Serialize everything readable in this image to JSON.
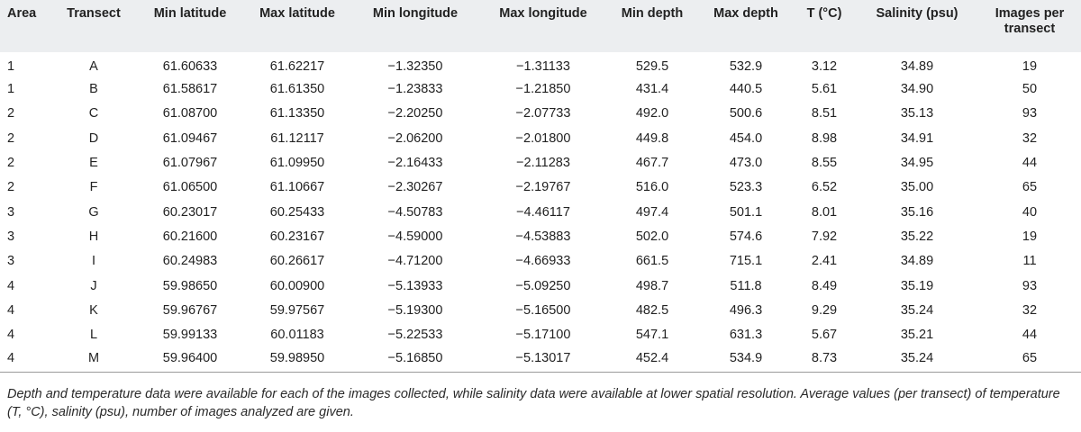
{
  "table": {
    "headers": [
      "Area",
      "Transect",
      "Min latitude",
      "Max latitude",
      "Min longitude",
      "Max longitude",
      "Min depth",
      "Max depth",
      "T (°C)",
      "Salinity (psu)",
      "Images per transect"
    ],
    "rows": [
      [
        "1",
        "A",
        "61.60633",
        "61.62217",
        "−1.32350",
        "−1.31133",
        "529.5",
        "532.9",
        "3.12",
        "34.89",
        "19"
      ],
      [
        "1",
        "B",
        "61.58617",
        "61.61350",
        "−1.23833",
        "−1.21850",
        "431.4",
        "440.5",
        "5.61",
        "34.90",
        "50"
      ],
      [
        "2",
        "C",
        "61.08700",
        "61.13350",
        "−2.20250",
        "−2.07733",
        "492.0",
        "500.6",
        "8.51",
        "35.13",
        "93"
      ],
      [
        "2",
        "D",
        "61.09467",
        "61.12117",
        "−2.06200",
        "−2.01800",
        "449.8",
        "454.0",
        "8.98",
        "34.91",
        "32"
      ],
      [
        "2",
        "E",
        "61.07967",
        "61.09950",
        "−2.16433",
        "−2.11283",
        "467.7",
        "473.0",
        "8.55",
        "34.95",
        "44"
      ],
      [
        "2",
        "F",
        "61.06500",
        "61.10667",
        "−2.30267",
        "−2.19767",
        "516.0",
        "523.3",
        "6.52",
        "35.00",
        "65"
      ],
      [
        "3",
        "G",
        "60.23017",
        "60.25433",
        "−4.50783",
        "−4.46117",
        "497.4",
        "501.1",
        "8.01",
        "35.16",
        "40"
      ],
      [
        "3",
        "H",
        "60.21600",
        "60.23167",
        "−4.59000",
        "−4.53883",
        "502.0",
        "574.6",
        "7.92",
        "35.22",
        "19"
      ],
      [
        "3",
        "I",
        "60.24983",
        "60.26617",
        "−4.71200",
        "−4.66933",
        "661.5",
        "715.1",
        "2.41",
        "34.89",
        "11"
      ],
      [
        "4",
        "J",
        "59.98650",
        "60.00900",
        "−5.13933",
        "−5.09250",
        "498.7",
        "511.8",
        "8.49",
        "35.19",
        "93"
      ],
      [
        "4",
        "K",
        "59.96767",
        "59.97567",
        "−5.19300",
        "−5.16500",
        "482.5",
        "496.3",
        "9.29",
        "35.24",
        "32"
      ],
      [
        "4",
        "L",
        "59.99133",
        "60.01183",
        "−5.22533",
        "−5.17100",
        "547.1",
        "631.3",
        "5.67",
        "35.21",
        "44"
      ],
      [
        "4",
        "M",
        "59.96400",
        "59.98950",
        "−5.16850",
        "−5.13017",
        "452.4",
        "534.9",
        "8.73",
        "35.24",
        "65"
      ]
    ]
  },
  "caption": "Depth and temperature data were available for each of the images collected, while salinity data were available at lower spatial resolution. Average values (per transect) of temperature (T, °C), salinity (psu), number of images analyzed are given."
}
